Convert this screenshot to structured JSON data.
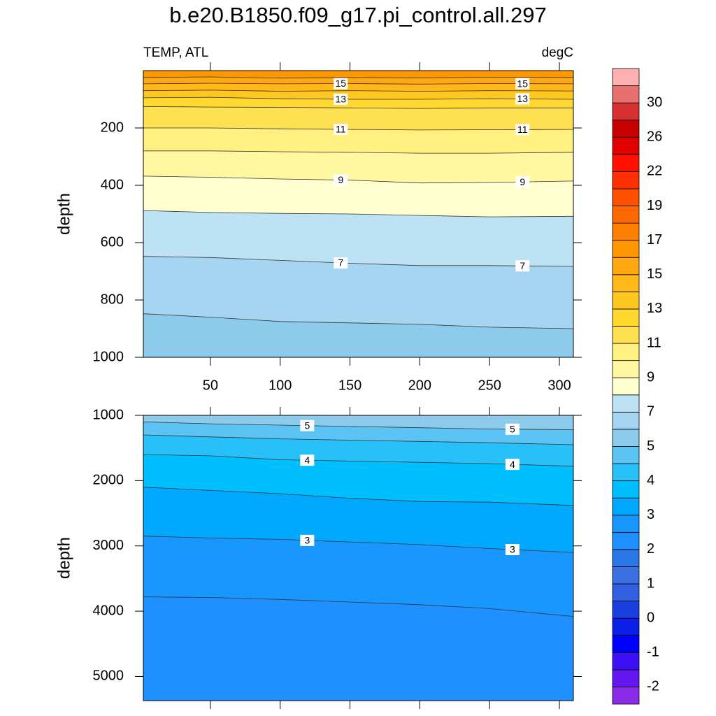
{
  "title": "b.e20.B1850.f09_g17.pi_control.all.297",
  "left_string": "TEMP, ATL",
  "right_string": "degC",
  "chart_data": [
    {
      "type": "contour",
      "ylabel": "depth",
      "xlim": [
        2,
        310
      ],
      "ylim": [
        0,
        1000
      ],
      "y_reversed": true,
      "xticks": [
        50,
        100,
        150,
        200,
        250,
        300
      ],
      "xtick_labels": true,
      "yticks": [
        200,
        400,
        600,
        800,
        1000
      ],
      "x": [
        2,
        50,
        100,
        150,
        200,
        250,
        310
      ],
      "fill_color": "#ff9800",
      "contours": [
        {
          "level": 16,
          "labeled": false,
          "color": "#ffa810",
          "depths": [
            24,
            22,
            26,
            24,
            25,
            23,
            24
          ]
        },
        {
          "level": 15,
          "labeled": true,
          "color": "#ffb818",
          "depths": [
            46,
            44,
            46,
            45,
            47,
            45,
            46
          ]
        },
        {
          "level": 14,
          "labeled": false,
          "color": "#ffc820",
          "depths": [
            70,
            68,
            72,
            70,
            72,
            70,
            71
          ]
        },
        {
          "level": 13,
          "labeled": true,
          "color": "#ffd830",
          "depths": [
            95,
            93,
            98,
            100,
            100,
            98,
            100
          ]
        },
        {
          "level": 12,
          "labeled": false,
          "color": "#ffe050",
          "depths": [
            125,
            127,
            128,
            130,
            132,
            130,
            130
          ]
        },
        {
          "level": 11,
          "labeled": true,
          "color": "#fff080",
          "depths": [
            200,
            200,
            203,
            205,
            207,
            206,
            205
          ]
        },
        {
          "level": 10,
          "labeled": false,
          "color": "#fff8a0",
          "depths": [
            280,
            280,
            283,
            285,
            288,
            288,
            285
          ]
        },
        {
          "level": 9,
          "labeled": true,
          "color": "#ffffd0",
          "depths": [
            368,
            372,
            378,
            382,
            392,
            390,
            385
          ]
        },
        {
          "level": 8,
          "labeled": false,
          "color": "#bde2f4",
          "depths": [
            488,
            495,
            498,
            500,
            505,
            510,
            508
          ]
        },
        {
          "level": 7,
          "labeled": true,
          "color": "#a5d5f0",
          "depths": [
            648,
            652,
            662,
            672,
            680,
            680,
            683
          ]
        },
        {
          "level": 6,
          "labeled": false,
          "color": "#8ccbec",
          "depths": [
            848,
            860,
            875,
            880,
            885,
            895,
            900
          ]
        }
      ]
    },
    {
      "type": "contour",
      "ylabel": "depth",
      "xlim": [
        2,
        310
      ],
      "ylim": [
        1000,
        5370
      ],
      "y_reversed": true,
      "xticks": [
        50,
        100,
        150,
        200,
        250,
        300
      ],
      "xtick_labels": false,
      "yticks": [
        1000,
        2000,
        3000,
        4000,
        5000
      ],
      "x": [
        2,
        50,
        100,
        150,
        200,
        250,
        310
      ],
      "fill_color": "#8ccbec",
      "contours": [
        {
          "level": 5,
          "labeled": true,
          "color": "#5cc4f4",
          "depths": [
            1100,
            1130,
            1150,
            1170,
            1190,
            1210,
            1220
          ]
        },
        {
          "level": 4.5,
          "labeled": false,
          "color": "#28c0f8",
          "depths": [
            1300,
            1330,
            1360,
            1380,
            1400,
            1420,
            1450
          ]
        },
        {
          "level": 4,
          "labeled": true,
          "color": "#00bfff",
          "depths": [
            1600,
            1620,
            1680,
            1700,
            1720,
            1740,
            1780
          ]
        },
        {
          "level": 3.5,
          "labeled": false,
          "color": "#00a8ff",
          "depths": [
            2100,
            2150,
            2200,
            2270,
            2320,
            2330,
            2380
          ]
        },
        {
          "level": 3,
          "labeled": true,
          "color": "#1898ff",
          "depths": [
            2850,
            2880,
            2900,
            2940,
            2980,
            3040,
            3100
          ]
        },
        {
          "level": 2.5,
          "labeled": false,
          "color": "#1e90ff",
          "depths": [
            3780,
            3790,
            3820,
            3860,
            3900,
            3960,
            4080
          ]
        }
      ]
    }
  ],
  "colorbar": {
    "labels": [
      -2,
      -1,
      0,
      1,
      2,
      3,
      4,
      5,
      7,
      9,
      11,
      13,
      15,
      17,
      19,
      22,
      26,
      30
    ],
    "colors": [
      "#8b2be8",
      "#6418f0",
      "#3c0ff5",
      "#0000ff",
      "#0a1ee8",
      "#1a3ee0",
      "#3060e0",
      "#3a70e0",
      "#2a78e8",
      "#1e90ff",
      "#1898ff",
      "#00a8ff",
      "#00bfff",
      "#28c0f8",
      "#5cc4f4",
      "#8ccbec",
      "#a5d5f0",
      "#bde2f4",
      "#ffffd0",
      "#fff8a0",
      "#fff080",
      "#ffe050",
      "#ffd830",
      "#ffc820",
      "#ffb818",
      "#ffa810",
      "#ff9800",
      "#ff8000",
      "#ff6800",
      "#ff5000",
      "#ff3000",
      "#ff1000",
      "#e00000",
      "#c80000",
      "#d83030",
      "#e87070",
      "#ffb0b0"
    ]
  }
}
